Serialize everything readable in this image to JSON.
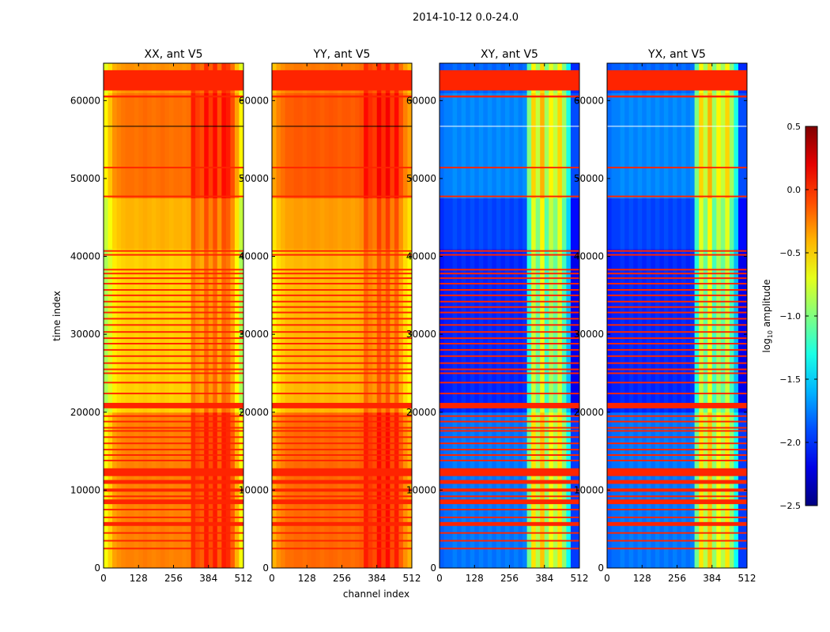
{
  "chart_data": {
    "type": "heatmap",
    "title": "2014-10-12 0.0-24.0",
    "xlabel": "channel index",
    "ylabel": "time index",
    "xlim": [
      0,
      512
    ],
    "ylim": [
      0,
      64800
    ],
    "xticks": [
      0,
      128,
      256,
      384,
      512
    ],
    "yticks": [
      0,
      10000,
      20000,
      30000,
      40000,
      50000,
      60000
    ],
    "colorbar": {
      "label": "log10 amplitude",
      "label_base": "log",
      "label_sub": "10",
      "label_rest": " amplitude",
      "range": [
        -2.5,
        0.5
      ],
      "ticks": [
        "0.5",
        "0.0",
        "−0.5",
        "−1.0",
        "−1.5",
        "−2.0",
        "−2.5"
      ],
      "tick_values": [
        0.5,
        0.0,
        -0.5,
        -1.0,
        -1.5,
        -2.0,
        -2.5
      ],
      "colormap": "jet"
    },
    "panels": [
      {
        "title": "XX, ant V5",
        "column_profile": [
          -0.8,
          -0.65,
          -0.5,
          -0.45,
          -0.42,
          -0.4,
          -0.4,
          -0.42,
          -0.4,
          -0.38,
          -0.4,
          -0.42,
          -0.4,
          -0.38,
          -0.4,
          -0.42,
          -0.4,
          -0.4,
          -0.42,
          -0.4,
          -0.15,
          -0.25,
          -0.3,
          -0.1,
          -0.25,
          -0.1,
          -0.3,
          -0.1,
          -0.15,
          -0.3,
          -0.55,
          -0.8
        ],
        "marker_color": "#000000"
      },
      {
        "title": "YY, ant V5",
        "column_profile": [
          -0.55,
          -0.45,
          -0.4,
          -0.35,
          -0.35,
          -0.33,
          -0.33,
          -0.35,
          -0.33,
          -0.32,
          -0.33,
          -0.35,
          -0.33,
          -0.32,
          -0.33,
          -0.35,
          -0.33,
          -0.33,
          -0.35,
          -0.33,
          -0.3,
          -0.1,
          -0.2,
          -0.25,
          -0.05,
          -0.2,
          -0.05,
          -0.25,
          -0.1,
          -0.3,
          -0.45,
          -0.55
        ],
        "marker_color": "#000000"
      },
      {
        "title": "XY, ant V5",
        "column_profile": [
          -2.0,
          -1.95,
          -1.95,
          -1.9,
          -1.95,
          -1.9,
          -1.95,
          -1.9,
          -1.95,
          -1.9,
          -1.95,
          -1.9,
          -1.95,
          -1.9,
          -1.95,
          -1.9,
          -1.95,
          -1.9,
          -1.95,
          -1.9,
          -1.2,
          -0.7,
          -1.0,
          -0.6,
          -1.1,
          -0.8,
          -1.0,
          -0.7,
          -1.1,
          -1.5,
          -2.1,
          -2.1
        ],
        "marker_color": "#ffffff"
      },
      {
        "title": "YX, ant V5",
        "column_profile": [
          -2.0,
          -1.95,
          -1.95,
          -1.9,
          -1.95,
          -1.9,
          -1.95,
          -1.9,
          -1.95,
          -1.9,
          -1.95,
          -1.9,
          -1.95,
          -1.9,
          -1.95,
          -1.9,
          -1.95,
          -1.9,
          -1.95,
          -1.9,
          -1.2,
          -0.7,
          -1.0,
          -0.6,
          -1.1,
          -0.8,
          -1.0,
          -0.7,
          -1.1,
          -1.5,
          -2.1,
          -2.1
        ],
        "marker_color": "#ffffff"
      }
    ],
    "row_offsets": [
      [
        0,
        20000,
        0.15
      ],
      [
        20000,
        41000,
        -0.08
      ],
      [
        41000,
        47500,
        0.0
      ],
      [
        47500,
        61000,
        0.2
      ],
      [
        61000,
        64800,
        0.1
      ]
    ],
    "flagged_value": 0.02,
    "flagged_intervals": [
      [
        61300,
        63900
      ],
      [
        60400,
        60650
      ],
      [
        51300,
        51500
      ],
      [
        47600,
        47800
      ],
      [
        20500,
        21200
      ],
      [
        2400,
        2600
      ],
      [
        3400,
        3600
      ],
      [
        4400,
        4600
      ],
      [
        5400,
        5900
      ],
      [
        6400,
        6600
      ],
      [
        7400,
        7600
      ],
      [
        8200,
        8800
      ],
      [
        9100,
        9300
      ],
      [
        9800,
        10200
      ],
      [
        10800,
        11300
      ],
      [
        11800,
        12800
      ],
      [
        13700,
        13900
      ],
      [
        14400,
        14600
      ],
      [
        15100,
        15300
      ],
      [
        15900,
        16100
      ],
      [
        16700,
        16900
      ],
      [
        17500,
        17700
      ],
      [
        17900,
        18100
      ],
      [
        18700,
        18900
      ],
      [
        19400,
        19600
      ],
      [
        22300,
        22500
      ],
      [
        23700,
        23900
      ],
      [
        24900,
        25100
      ],
      [
        25400,
        25600
      ],
      [
        26200,
        26400
      ],
      [
        27100,
        27300
      ],
      [
        27900,
        28100
      ],
      [
        28700,
        28900
      ],
      [
        29400,
        29600
      ],
      [
        30200,
        30400
      ],
      [
        31100,
        31300
      ],
      [
        31900,
        32100
      ],
      [
        32700,
        32900
      ],
      [
        33400,
        33600
      ],
      [
        34100,
        34300
      ],
      [
        34900,
        35100
      ],
      [
        35600,
        35800
      ],
      [
        36400,
        36600
      ],
      [
        37100,
        37300
      ],
      [
        37700,
        37900
      ],
      [
        38200,
        38400
      ],
      [
        40100,
        40300
      ],
      [
        40600,
        40800
      ]
    ],
    "marker_lines": [
      56700
    ]
  }
}
